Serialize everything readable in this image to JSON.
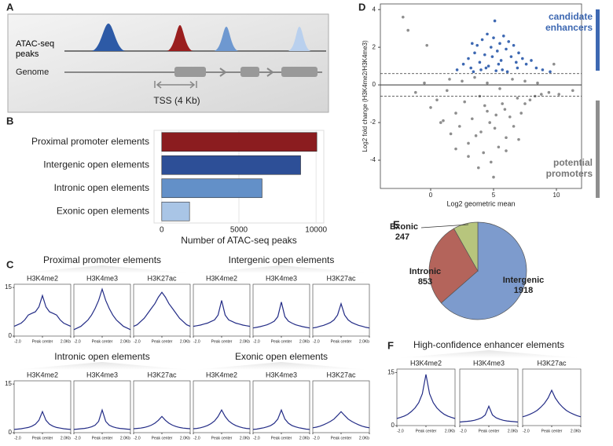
{
  "panel_labels": [
    "A",
    "B",
    "C",
    "D",
    "E",
    "F"
  ],
  "diagram": {
    "peaks_label": "ATAC-seq peaks",
    "genome_label": "Genome",
    "tss_label": "TSS (4 Kb)"
  },
  "profile_groups": [
    {
      "title": "Proximal promoter elements"
    },
    {
      "title": "Intergenic open elements"
    },
    {
      "title": "Intronic open elements"
    },
    {
      "title": "Exonic open elements"
    },
    {
      "title": "High-confidence enhancer elements"
    }
  ],
  "chart_data": [
    {
      "type": "hbar",
      "categories": [
        "Proximal promoter elements",
        "Intergenic open elements",
        "Intronic open elements",
        "Exonic open elements"
      ],
      "values": [
        10050,
        9000,
        6500,
        1800
      ],
      "colors": [
        "#8b1c1f",
        "#2d4f97",
        "#6390c8",
        "#a9c5e6"
      ],
      "xlabel": "Number of ATAC-seq peaks",
      "xlim": [
        -500,
        10500
      ],
      "xticks": [
        0,
        5000,
        10000
      ],
      "grid": true
    },
    {
      "type": "scatter",
      "xlabel": "Log2 geometric mean",
      "ylabel": "Log2 fold change (H3K4me2/H3K4me3)",
      "xlim": [
        -4,
        12
      ],
      "ylim": [
        -5.5,
        4.3
      ],
      "xticks": [
        0,
        5,
        10
      ],
      "yticks": [
        -4,
        -2,
        0,
        2,
        4
      ],
      "hlines": [
        {
          "value": 0.6,
          "style": "dashed"
        },
        {
          "value": 0,
          "style": "solid"
        },
        {
          "value": -0.6,
          "style": "dashed"
        }
      ],
      "series": [
        {
          "name": "candidate enhancers",
          "color": "#3d68b2",
          "x": [
            2.1,
            2.6,
            3,
            3.2,
            3.5,
            3.7,
            3.9,
            4.1,
            4.3,
            4.5,
            4.6,
            4.8,
            5,
            5.1,
            5.3,
            5.5,
            5.6,
            5.8,
            6,
            6.2,
            6.4,
            6.6,
            6.8,
            7,
            7.3,
            7.6,
            8,
            8.4,
            8.9,
            9.5,
            3.4,
            4,
            4.4,
            5.2,
            5.7,
            6.1,
            6.9,
            4.9,
            5.4,
            3.3
          ],
          "values": [
            0.8,
            1.1,
            1.4,
            0.9,
            1.7,
            2.1,
            1.2,
            2.4,
            1.6,
            2.7,
            1,
            2,
            2.5,
            3.4,
            1.8,
            2.2,
            1.3,
            2.6,
            1.9,
            2.3,
            1.5,
            2.1,
            1.2,
            1.7,
            1.4,
            1.1,
            1.3,
            0.9,
            0.8,
            0.7,
            0.7,
            0.8,
            0.9,
            0.75,
            0.8,
            0.7,
            0.9,
            1.5,
            1.1,
            2.2
          ]
        },
        {
          "name": "potential promoters",
          "color": "#8e8e8e",
          "x": [
            -2.2,
            -1.8,
            -1.2,
            -0.5,
            0,
            0.5,
            1,
            1.3,
            1.6,
            2,
            2.3,
            2.7,
            3,
            3.3,
            3.6,
            3.9,
            4.2,
            4.5,
            4.8,
            5.1,
            5.4,
            5.7,
            6,
            6.3,
            6.6,
            6.9,
            7.2,
            7.5,
            7.9,
            8.3,
            8.8,
            9.4,
            10.2,
            11.3,
            1.5,
            2.5,
            3.5,
            4.5,
            5.5,
            6.5,
            7.5,
            8.5,
            2,
            3,
            4,
            5,
            6,
            7,
            4.3,
            5.2,
            -0.3,
            0.8,
            9.8,
            3.8,
            4.7,
            5.9
          ],
          "values": [
            3.6,
            2.9,
            -0.4,
            0.1,
            -1.2,
            -0.8,
            -1.9,
            -0.3,
            -2.6,
            -1.5,
            -2.2,
            -0.9,
            -3.1,
            -1.8,
            -2.7,
            -0.6,
            -3.6,
            -1.4,
            -4.1,
            -2.3,
            -3.3,
            -1,
            -2.8,
            -1.7,
            -2.2,
            -0.7,
            -1.5,
            -1,
            -0.8,
            -0.6,
            -0.5,
            -0.4,
            -0.5,
            -0.3,
            0.3,
            0.2,
            0.4,
            0.1,
            -0.2,
            0.3,
            0.2,
            0.1,
            -3.4,
            -3.8,
            -2.5,
            -4.9,
            -3.5,
            -2.9,
            -1.1,
            -1.6,
            2.1,
            -2,
            1.1,
            -4.4,
            -2,
            -1.3
          ]
        }
      ]
    },
    {
      "type": "pie",
      "categories": [
        "Intergenic",
        "Intronic",
        "Exonic"
      ],
      "values": [
        1918,
        853,
        247
      ],
      "colors": [
        "#7d9bcd",
        "#b4645b",
        "#b7c57d"
      ]
    },
    {
      "type": "profile",
      "title": "H3K4me2",
      "color": "#232c86",
      "x": [
        -2,
        -1.75,
        -1.5,
        -1.25,
        -1,
        -0.75,
        -0.5,
        -0.25,
        0,
        0.25,
        0.5,
        0.75,
        1,
        1.25,
        1.5,
        1.75,
        2
      ],
      "values": [
        3,
        3.5,
        4,
        5,
        6.5,
        7,
        7.5,
        9,
        12.5,
        9,
        7.5,
        7,
        6.5,
        5,
        4,
        3.5,
        3
      ],
      "xlim": [
        -2,
        2
      ],
      "ylim": [
        0,
        16
      ],
      "yticks": [
        0,
        15
      ],
      "xticks": [
        {
          "value": -2,
          "label": "-2.0"
        },
        {
          "value": 0,
          "label": "Peak center"
        },
        {
          "value": 2,
          "label": "2.0Kb"
        }
      ]
    },
    {
      "type": "profile",
      "title": "H3K4me3",
      "color": "#232c86",
      "x": [
        -2,
        -1.75,
        -1.5,
        -1.25,
        -1,
        -0.75,
        -0.5,
        -0.25,
        0,
        0.25,
        0.5,
        0.75,
        1,
        1.25,
        1.5,
        1.75,
        2
      ],
      "values": [
        2,
        2.5,
        3,
        4,
        5,
        6.5,
        8.5,
        11,
        14.5,
        11,
        8.5,
        6.5,
        5,
        4,
        3,
        2.5,
        2
      ],
      "xlim": [
        -2,
        2
      ],
      "ylim": [
        0,
        16
      ],
      "xticks": [
        {
          "value": -2,
          "label": "-2.0"
        },
        {
          "value": 0,
          "label": "Peak center"
        },
        {
          "value": 2,
          "label": "2.0Kb"
        }
      ]
    },
    {
      "type": "profile",
      "title": "H3K27ac",
      "color": "#232c86",
      "x": [
        -2,
        -1.75,
        -1.5,
        -1.25,
        -1,
        -0.75,
        -0.5,
        -0.25,
        0,
        0.25,
        0.5,
        0.75,
        1,
        1.25,
        1.5,
        1.75,
        2
      ],
      "values": [
        3,
        3.5,
        4.5,
        5.5,
        7,
        8.5,
        10,
        12,
        13.5,
        12,
        10,
        8.5,
        7,
        5.5,
        4.5,
        3.5,
        3
      ],
      "xlim": [
        -2,
        2
      ],
      "ylim": [
        0,
        16
      ],
      "xticks": [
        {
          "value": -2,
          "label": "-2.0"
        },
        {
          "value": 0,
          "label": "Peak center"
        },
        {
          "value": 2,
          "label": "2.0Kb"
        }
      ]
    },
    {
      "type": "profile",
      "title": "H3K4me2",
      "color": "#232c86",
      "x": [
        -2,
        -1.75,
        -1.5,
        -1.25,
        -1,
        -0.75,
        -0.5,
        -0.25,
        0,
        0.25,
        0.5,
        0.75,
        1,
        1.25,
        1.5,
        1.75,
        2
      ],
      "values": [
        3,
        3.2,
        3.4,
        3.7,
        4,
        4.5,
        5,
        6.5,
        11,
        6.5,
        5,
        4.5,
        4,
        3.7,
        3.4,
        3.2,
        3
      ],
      "xlim": [
        -2,
        2
      ],
      "ylim": [
        0,
        16
      ],
      "xticks": [
        {
          "value": -2,
          "label": "-2.0"
        },
        {
          "value": 0,
          "label": "Peak center"
        },
        {
          "value": 2,
          "label": "2.0Kb"
        }
      ]
    },
    {
      "type": "profile",
      "title": "H3K4me3",
      "color": "#232c86",
      "x": [
        -2,
        -1.75,
        -1.5,
        -1.25,
        -1,
        -0.75,
        -0.5,
        -0.25,
        0,
        0.25,
        0.5,
        0.75,
        1,
        1.25,
        1.5,
        1.75,
        2
      ],
      "values": [
        2.5,
        2.7,
        2.9,
        3.2,
        3.5,
        4,
        4.6,
        6,
        10.5,
        6,
        4.6,
        4,
        3.5,
        3.2,
        2.9,
        2.7,
        2.5
      ],
      "xlim": [
        -2,
        2
      ],
      "ylim": [
        0,
        16
      ],
      "xticks": [
        {
          "value": -2,
          "label": "-2.0"
        },
        {
          "value": 0,
          "label": "Peak center"
        },
        {
          "value": 2,
          "label": "2.0Kb"
        }
      ]
    },
    {
      "type": "profile",
      "title": "H3K27ac",
      "color": "#232c86",
      "x": [
        -2,
        -1.75,
        -1.5,
        -1.25,
        -1,
        -0.75,
        -0.5,
        -0.25,
        0,
        0.25,
        0.5,
        0.75,
        1,
        1.25,
        1.5,
        1.75,
        2
      ],
      "values": [
        2.5,
        2.7,
        3,
        3.3,
        3.7,
        4.2,
        5,
        6.5,
        10,
        6.5,
        5,
        4.2,
        3.7,
        3.3,
        3,
        2.7,
        2.5
      ],
      "xlim": [
        -2,
        2
      ],
      "ylim": [
        0,
        16
      ],
      "xticks": [
        {
          "value": -2,
          "label": "-2.0"
        },
        {
          "value": 0,
          "label": "Peak center"
        },
        {
          "value": 2,
          "label": "2.0Kb"
        }
      ]
    },
    {
      "type": "profile",
      "title": "H3K4me2",
      "color": "#232c86",
      "x": [
        -2,
        -1.75,
        -1.5,
        -1.25,
        -1,
        -0.75,
        -0.5,
        -0.25,
        0,
        0.25,
        0.5,
        0.75,
        1,
        1.25,
        1.5,
        1.75,
        2
      ],
      "values": [
        1,
        1.1,
        1.2,
        1.4,
        1.6,
        2,
        2.6,
        3.8,
        6.5,
        3.8,
        2.6,
        2,
        1.6,
        1.4,
        1.2,
        1.1,
        1
      ],
      "xlim": [
        -2,
        2
      ],
      "ylim": [
        0,
        16
      ],
      "yticks": [
        0,
        15
      ],
      "xticks": [
        {
          "value": -2,
          "label": "-2.0"
        },
        {
          "value": 0,
          "label": "Peak center"
        },
        {
          "value": 2,
          "label": "2.0Kb"
        }
      ]
    },
    {
      "type": "profile",
      "title": "H3K4me3",
      "color": "#232c86",
      "x": [
        -2,
        -1.75,
        -1.5,
        -1.25,
        -1,
        -0.75,
        -0.5,
        -0.25,
        0,
        0.25,
        0.5,
        0.75,
        1,
        1.25,
        1.5,
        1.75,
        2
      ],
      "values": [
        1,
        1.1,
        1.2,
        1.3,
        1.5,
        1.8,
        2.3,
        3.5,
        7,
        3.5,
        2.3,
        1.8,
        1.5,
        1.3,
        1.2,
        1.1,
        1
      ],
      "xlim": [
        -2,
        2
      ],
      "ylim": [
        0,
        16
      ],
      "xticks": [
        {
          "value": -2,
          "label": "-2.0"
        },
        {
          "value": 0,
          "label": "Peak center"
        },
        {
          "value": 2,
          "label": "2.0Kb"
        }
      ]
    },
    {
      "type": "profile",
      "title": "H3K27ac",
      "color": "#232c86",
      "x": [
        -2,
        -1.75,
        -1.5,
        -1.25,
        -1,
        -0.75,
        -0.5,
        -0.25,
        0,
        0.25,
        0.5,
        0.75,
        1,
        1.25,
        1.5,
        1.75,
        2
      ],
      "values": [
        1.2,
        1.3,
        1.4,
        1.6,
        1.9,
        2.3,
        2.9,
        3.8,
        5,
        3.8,
        2.9,
        2.3,
        1.9,
        1.6,
        1.4,
        1.3,
        1.2
      ],
      "xlim": [
        -2,
        2
      ],
      "ylim": [
        0,
        16
      ],
      "xticks": [
        {
          "value": -2,
          "label": "-2.0"
        },
        {
          "value": 0,
          "label": "Peak center"
        },
        {
          "value": 2,
          "label": "2.0Kb"
        }
      ]
    },
    {
      "type": "profile",
      "title": "H3K4me2",
      "color": "#232c86",
      "x": [
        -2,
        -1.75,
        -1.5,
        -1.25,
        -1,
        -0.75,
        -0.5,
        -0.25,
        0,
        0.25,
        0.5,
        0.75,
        1,
        1.25,
        1.5,
        1.75,
        2
      ],
      "values": [
        1.2,
        1.3,
        1.5,
        1.8,
        2.2,
        2.8,
        3.6,
        5,
        7,
        5,
        3.6,
        2.8,
        2.2,
        1.8,
        1.5,
        1.3,
        1.2
      ],
      "xlim": [
        -2,
        2
      ],
      "ylim": [
        0,
        16
      ],
      "xticks": [
        {
          "value": -2,
          "label": "-2.0"
        },
        {
          "value": 0,
          "label": "Peak center"
        },
        {
          "value": 2,
          "label": "2.0Kb"
        }
      ]
    },
    {
      "type": "profile",
      "title": "H3K4me3",
      "color": "#232c86",
      "x": [
        -2,
        -1.75,
        -1.5,
        -1.25,
        -1,
        -0.75,
        -0.5,
        -0.25,
        0,
        0.25,
        0.5,
        0.75,
        1,
        1.25,
        1.5,
        1.75,
        2
      ],
      "values": [
        1,
        1.1,
        1.3,
        1.5,
        1.8,
        2.2,
        2.9,
        4.2,
        7,
        4.2,
        2.9,
        2.2,
        1.8,
        1.5,
        1.3,
        1.1,
        1
      ],
      "xlim": [
        -2,
        2
      ],
      "ylim": [
        0,
        16
      ],
      "xticks": [
        {
          "value": -2,
          "label": "-2.0"
        },
        {
          "value": 0,
          "label": "Peak center"
        },
        {
          "value": 2,
          "label": "2.0Kb"
        }
      ]
    },
    {
      "type": "profile",
      "title": "H3K27ac",
      "color": "#232c86",
      "x": [
        -2,
        -1.75,
        -1.5,
        -1.25,
        -1,
        -0.75,
        -0.5,
        -0.25,
        0,
        0.25,
        0.5,
        0.75,
        1,
        1.25,
        1.5,
        1.75,
        2
      ],
      "values": [
        1.5,
        1.7,
        2,
        2.4,
        2.9,
        3.5,
        4.2,
        5.3,
        6.5,
        5.3,
        4.2,
        3.5,
        2.9,
        2.4,
        2,
        1.7,
        1.5
      ],
      "xlim": [
        -2,
        2
      ],
      "ylim": [
        0,
        16
      ],
      "xticks": [
        {
          "value": -2,
          "label": "-2.0"
        },
        {
          "value": 0,
          "label": "Peak center"
        },
        {
          "value": 2,
          "label": "2.0Kb"
        }
      ]
    },
    {
      "type": "profile",
      "title": "H3K4me2",
      "color": "#232c86",
      "x": [
        -2,
        -1.75,
        -1.5,
        -1.25,
        -1,
        -0.75,
        -0.5,
        -0.25,
        0,
        0.25,
        0.5,
        0.75,
        1,
        1.25,
        1.5,
        1.75,
        2
      ],
      "values": [
        2,
        2.3,
        2.7,
        3.2,
        4,
        5,
        6.5,
        9,
        14.5,
        9,
        6.5,
        5,
        4,
        3.2,
        2.7,
        2.3,
        2
      ],
      "xlim": [
        -2,
        2
      ],
      "ylim": [
        0,
        16
      ],
      "yticks": [
        0,
        15
      ],
      "xticks": [
        {
          "value": -2,
          "label": "-2.0"
        },
        {
          "value": 0,
          "label": "Peak center"
        },
        {
          "value": 2,
          "label": "2.0Kb"
        }
      ]
    },
    {
      "type": "profile",
      "title": "H3K4me3",
      "color": "#232c86",
      "x": [
        -2,
        -1.75,
        -1.5,
        -1.25,
        -1,
        -0.75,
        -0.5,
        -0.25,
        0,
        0.25,
        0.5,
        0.75,
        1,
        1.25,
        1.5,
        1.75,
        2
      ],
      "values": [
        1,
        1.1,
        1.2,
        1.3,
        1.5,
        1.8,
        2.2,
        3,
        5.5,
        3,
        2.2,
        1.8,
        1.5,
        1.3,
        1.2,
        1.1,
        1
      ],
      "xlim": [
        -2,
        2
      ],
      "ylim": [
        0,
        16
      ],
      "xticks": [
        {
          "value": -2,
          "label": "-2.0"
        },
        {
          "value": 0,
          "label": "Peak center"
        },
        {
          "value": 2,
          "label": "2.0Kb"
        }
      ]
    },
    {
      "type": "profile",
      "title": "H3K27ac",
      "color": "#232c86",
      "x": [
        -2,
        -1.75,
        -1.5,
        -1.25,
        -1,
        -0.75,
        -0.5,
        -0.25,
        0,
        0.25,
        0.5,
        0.75,
        1,
        1.25,
        1.5,
        1.75,
        2
      ],
      "values": [
        2.5,
        2.8,
        3.2,
        3.7,
        4.3,
        5.2,
        6.3,
        7.8,
        10,
        7.8,
        6.3,
        5.2,
        4.3,
        3.7,
        3.2,
        2.8,
        2.5
      ],
      "xlim": [
        -2,
        2
      ],
      "ylim": [
        0,
        16
      ],
      "xticks": [
        {
          "value": -2,
          "label": "-2.0"
        },
        {
          "value": 0,
          "label": "Peak center"
        },
        {
          "value": 2,
          "label": "2.0Kb"
        }
      ]
    }
  ]
}
